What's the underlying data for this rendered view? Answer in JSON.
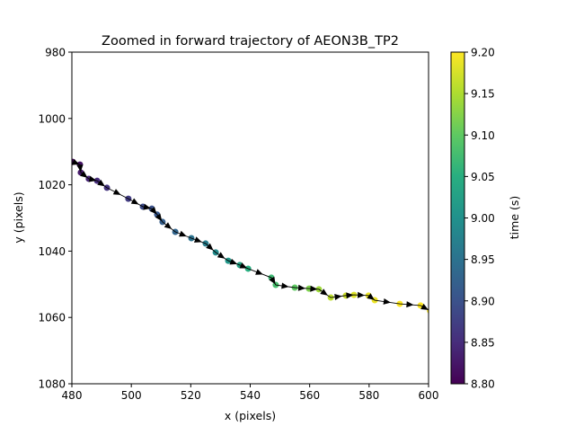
{
  "chart_data": {
    "type": "scatter",
    "title": "Zoomed in forward trajectory of AEON3B_TP2",
    "xlabel": "x (pixels)",
    "ylabel": "y (pixels)",
    "xlim": [
      480,
      600
    ],
    "ylim": [
      1080,
      980
    ],
    "y_inverted": true,
    "xticks": [
      480,
      500,
      520,
      540,
      560,
      580,
      600
    ],
    "yticks": [
      980,
      1000,
      1020,
      1040,
      1060,
      1080
    ],
    "grid": false,
    "colorbar": {
      "label": "time (s)",
      "colormap": "viridis",
      "range": [
        8.8,
        9.2
      ],
      "ticks": [
        "8.80",
        "8.85",
        "8.90",
        "8.95",
        "9.00",
        "9.05",
        "9.10",
        "9.15",
        "9.20"
      ]
    },
    "line_color": "#000000",
    "arrow_markers": true,
    "x": [
      480.3,
      482.7,
      483.0,
      485.7,
      488.5,
      491.8,
      499.0,
      503.9,
      506.9,
      508.7,
      510.5,
      514.8,
      520.2,
      525.0,
      528.4,
      532.6,
      536.5,
      539.3,
      547.1,
      548.6,
      555.0,
      559.8,
      563.1,
      567.1,
      572.2,
      574.9,
      579.8,
      581.9,
      590.3,
      597.3,
      600.5
    ],
    "y": [
      1013.1,
      1013.9,
      1016.3,
      1018.2,
      1018.8,
      1020.9,
      1024.2,
      1026.6,
      1027.2,
      1029.0,
      1031.2,
      1034.2,
      1036.1,
      1037.7,
      1040.4,
      1042.9,
      1044.2,
      1045.3,
      1048.0,
      1050.2,
      1051.0,
      1051.3,
      1051.5,
      1054.0,
      1053.4,
      1053.2,
      1053.4,
      1054.8,
      1055.9,
      1056.4,
      1058.0
    ],
    "time": [
      8.81,
      8.82,
      8.83,
      8.84,
      8.85,
      8.86,
      8.87,
      8.89,
      8.9,
      8.91,
      8.92,
      8.93,
      8.95,
      8.97,
      8.99,
      9.01,
      9.03,
      9.05,
      9.07,
      9.08,
      9.1,
      9.12,
      9.14,
      9.16,
      9.17,
      9.18,
      9.19,
      9.19,
      9.2,
      9.2,
      9.2
    ]
  }
}
